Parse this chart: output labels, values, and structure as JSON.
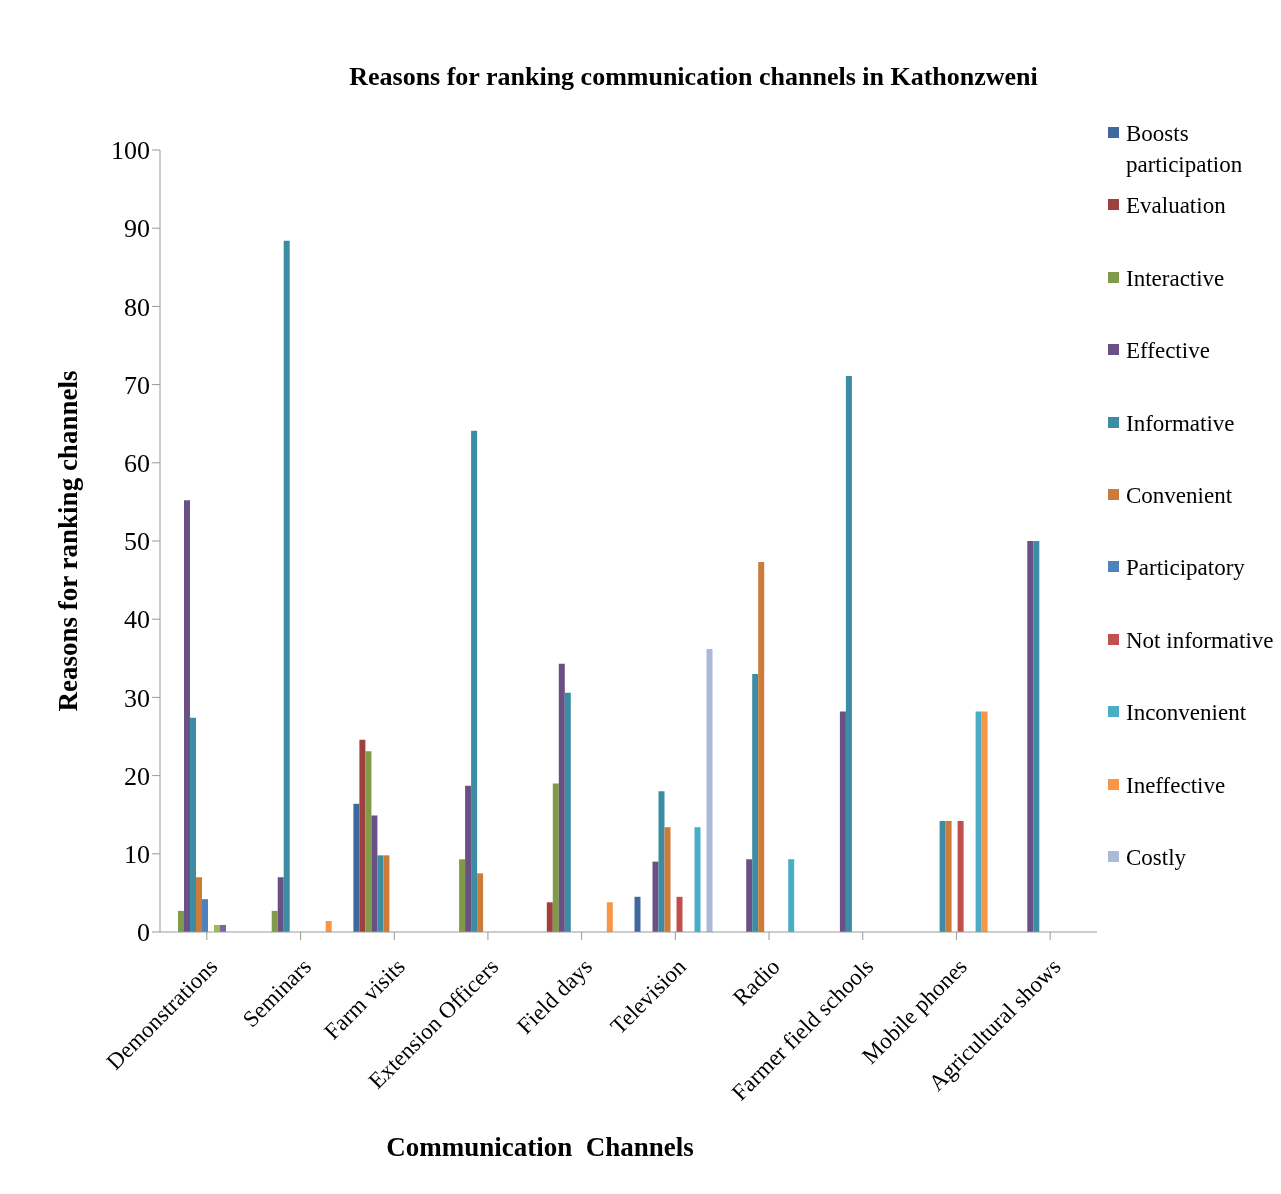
{
  "chart_data": {
    "type": "bar",
    "title": "Reasons for ranking communication channels in Kathonzweni",
    "xlabel": "Communication  Channels",
    "ylabel": "Reasons for ranking  channels",
    "categories": [
      "Demonstrations",
      "Seminars",
      "Farm visits",
      "Extension Officers",
      "Field days",
      "Television",
      "Radio",
      "Farmer field schools",
      "Mobile phones",
      "Agricultural shows"
    ],
    "series": [
      {
        "name": "Boosts participation",
        "color": "#41689e",
        "values": [
          null,
          null,
          16.4,
          null,
          null,
          4.5,
          null,
          null,
          null,
          null
        ]
      },
      {
        "name": "Evaluation",
        "color": "#9e413e",
        "values": [
          null,
          null,
          24.6,
          null,
          3.8,
          null,
          null,
          null,
          null,
          null
        ]
      },
      {
        "name": "Interactive",
        "color": "#7f9a48",
        "values": [
          2.7,
          2.7,
          23.1,
          9.3,
          19.0,
          null,
          null,
          null,
          null,
          null
        ]
      },
      {
        "name": "Effective",
        "color": "#695185",
        "values": [
          55.2,
          7.0,
          14.9,
          18.7,
          34.3,
          9.0,
          9.3,
          28.2,
          null,
          50
        ]
      },
      {
        "name": "Informative",
        "color": "#3c8da3",
        "values": [
          27.4,
          88.4,
          9.8,
          64.1,
          30.6,
          18.0,
          33.0,
          71.1,
          14.2,
          50
        ]
      },
      {
        "name": "Convenient",
        "color": "#cc7b38",
        "values": [
          7.0,
          null,
          9.8,
          7.5,
          null,
          13.4,
          47.3,
          null,
          14.2,
          null
        ]
      },
      {
        "name": "Participatory",
        "color": "#4f81bd",
        "values": [
          4.2,
          null,
          null,
          null,
          null,
          null,
          null,
          null,
          null,
          null
        ]
      },
      {
        "name": "Not informative",
        "color": "#c0504d",
        "values": [
          null,
          null,
          null,
          null,
          null,
          4.5,
          null,
          null,
          14.2,
          null
        ]
      },
      {
        "color": "#9bbb59",
        "values": [
          0.9,
          null,
          null,
          null,
          null,
          null,
          null,
          null,
          null,
          null
        ]
      },
      {
        "color": "#8064a2",
        "values": [
          0.9,
          null,
          null,
          null,
          null,
          null,
          null,
          null,
          null,
          null
        ]
      },
      {
        "name": "Inconvenient",
        "color": "#4bacc6",
        "values": [
          null,
          null,
          null,
          null,
          null,
          13.4,
          9.3,
          null,
          28.2,
          null
        ]
      },
      {
        "name": "Ineffective",
        "color": "#f79646",
        "values": [
          null,
          1.4,
          null,
          null,
          3.8,
          null,
          null,
          null,
          28.2,
          null
        ]
      },
      {
        "name": "Costly",
        "color": "#aabad7",
        "values": [
          null,
          null,
          null,
          null,
          null,
          36.2,
          null,
          null,
          null,
          null
        ]
      }
    ],
    "ylim": [
      0,
      100
    ],
    "yticks": [
      0,
      10,
      20,
      30,
      40,
      50,
      60,
      70,
      80,
      90,
      100
    ],
    "grid": false,
    "legend": "right"
  }
}
